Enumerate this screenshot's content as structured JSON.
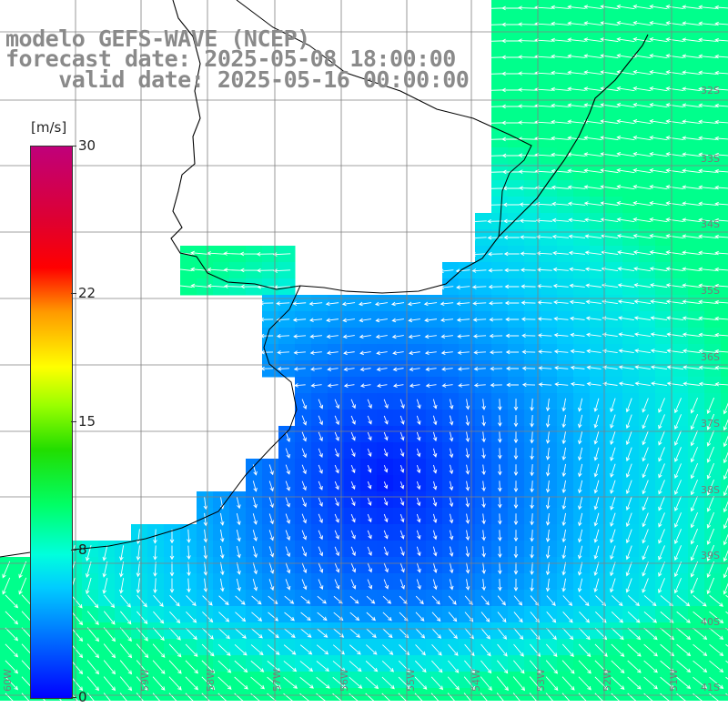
{
  "title": {
    "line1": "modelo GEFS-WAVE (NCEP)",
    "line2": "forecast date: 2025-05-08 18:00:00",
    "line3": "    valid date: 2025-05-16 00:00:00"
  },
  "colorbar": {
    "units": "[m/s]",
    "min": 0,
    "max": 30,
    "ticks": [
      {
        "label": "30",
        "value": 30
      },
      {
        "label": "22",
        "value": 22
      },
      {
        "label": "15",
        "value": 15
      },
      {
        "label": "8",
        "value": 8
      },
      {
        "label": "0",
        "value": 0
      }
    ]
  },
  "lat_labels": [
    "32S",
    "33S",
    "34S",
    "35S",
    "36S",
    "37S",
    "38S",
    "39S",
    "40S",
    "41S"
  ],
  "lon_labels": [
    "60W",
    "59W",
    "58W",
    "57W",
    "56W",
    "55W",
    "54W",
    "53W",
    "52W",
    "51W"
  ],
  "colors": {
    "land": "#ffffff",
    "coast": "#000000",
    "grid": "#808080",
    "arrow": "#ffffff",
    "title": "#8a8a8a"
  }
}
